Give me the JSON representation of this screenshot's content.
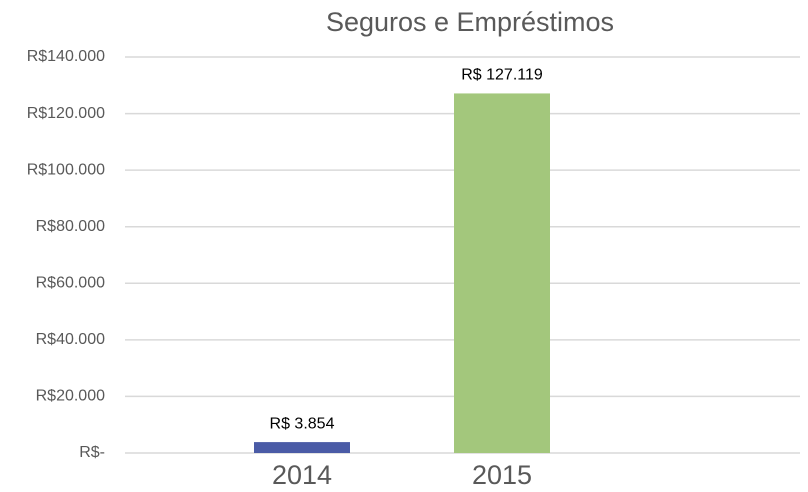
{
  "chart_data": {
    "type": "bar",
    "title": "Seguros e Empréstimos",
    "categories": [
      "2014",
      "2015"
    ],
    "values": [
      3854,
      127119
    ],
    "value_labels": [
      "R$ 3.854",
      "R$ 127.119"
    ],
    "colors": [
      "#4a5ba6",
      "#a3c77c"
    ],
    "ylim": [
      0,
      140000
    ],
    "yticks": [
      {
        "value": 0,
        "label": "R$-"
      },
      {
        "value": 20000,
        "label": "R$20.000"
      },
      {
        "value": 40000,
        "label": "R$40.000"
      },
      {
        "value": 60000,
        "label": "R$60.000"
      },
      {
        "value": 80000,
        "label": "R$80.000"
      },
      {
        "value": 100000,
        "label": "R$100.000"
      },
      {
        "value": 120000,
        "label": "R$120.000"
      },
      {
        "value": 140000,
        "label": "R$140.000"
      }
    ],
    "grid": true
  }
}
